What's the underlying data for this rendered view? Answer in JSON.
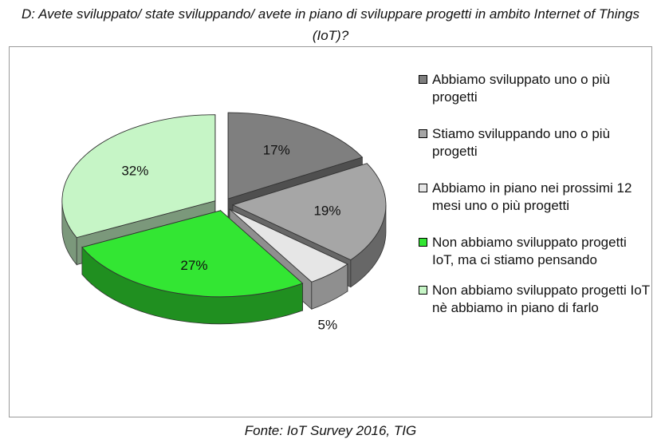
{
  "title": "D: Avete sviluppato/ state sviluppando/ avete in piano di sviluppare progetti in ambito Internet of Things (IoT)?",
  "source": "Fonte: IoT Survey 2016, TIG",
  "chart_data": {
    "type": "pie",
    "categories": [
      "Abbiamo sviluppato uno o più progetti",
      "Stiamo sviluppando uno o più progetti",
      "Abbiamo in piano nei prossimi 12 mesi uno o più progetti",
      "Non abbiamo sviluppato progetti IoT, ma ci stiamo pensando",
      "Non abbiamo sviluppato progetti IoT nè abbiamo in piano di farlo"
    ],
    "values": [
      17,
      19,
      5,
      27,
      32
    ],
    "labels": [
      "17%",
      "19%",
      "5%",
      "27%",
      "32%"
    ],
    "colors": [
      "#7f7f7f",
      "#a6a6a6",
      "#e6e6e6",
      "#33e633",
      "#c6f5c6"
    ],
    "style": "3D exploded pie",
    "legend_position": "right"
  }
}
